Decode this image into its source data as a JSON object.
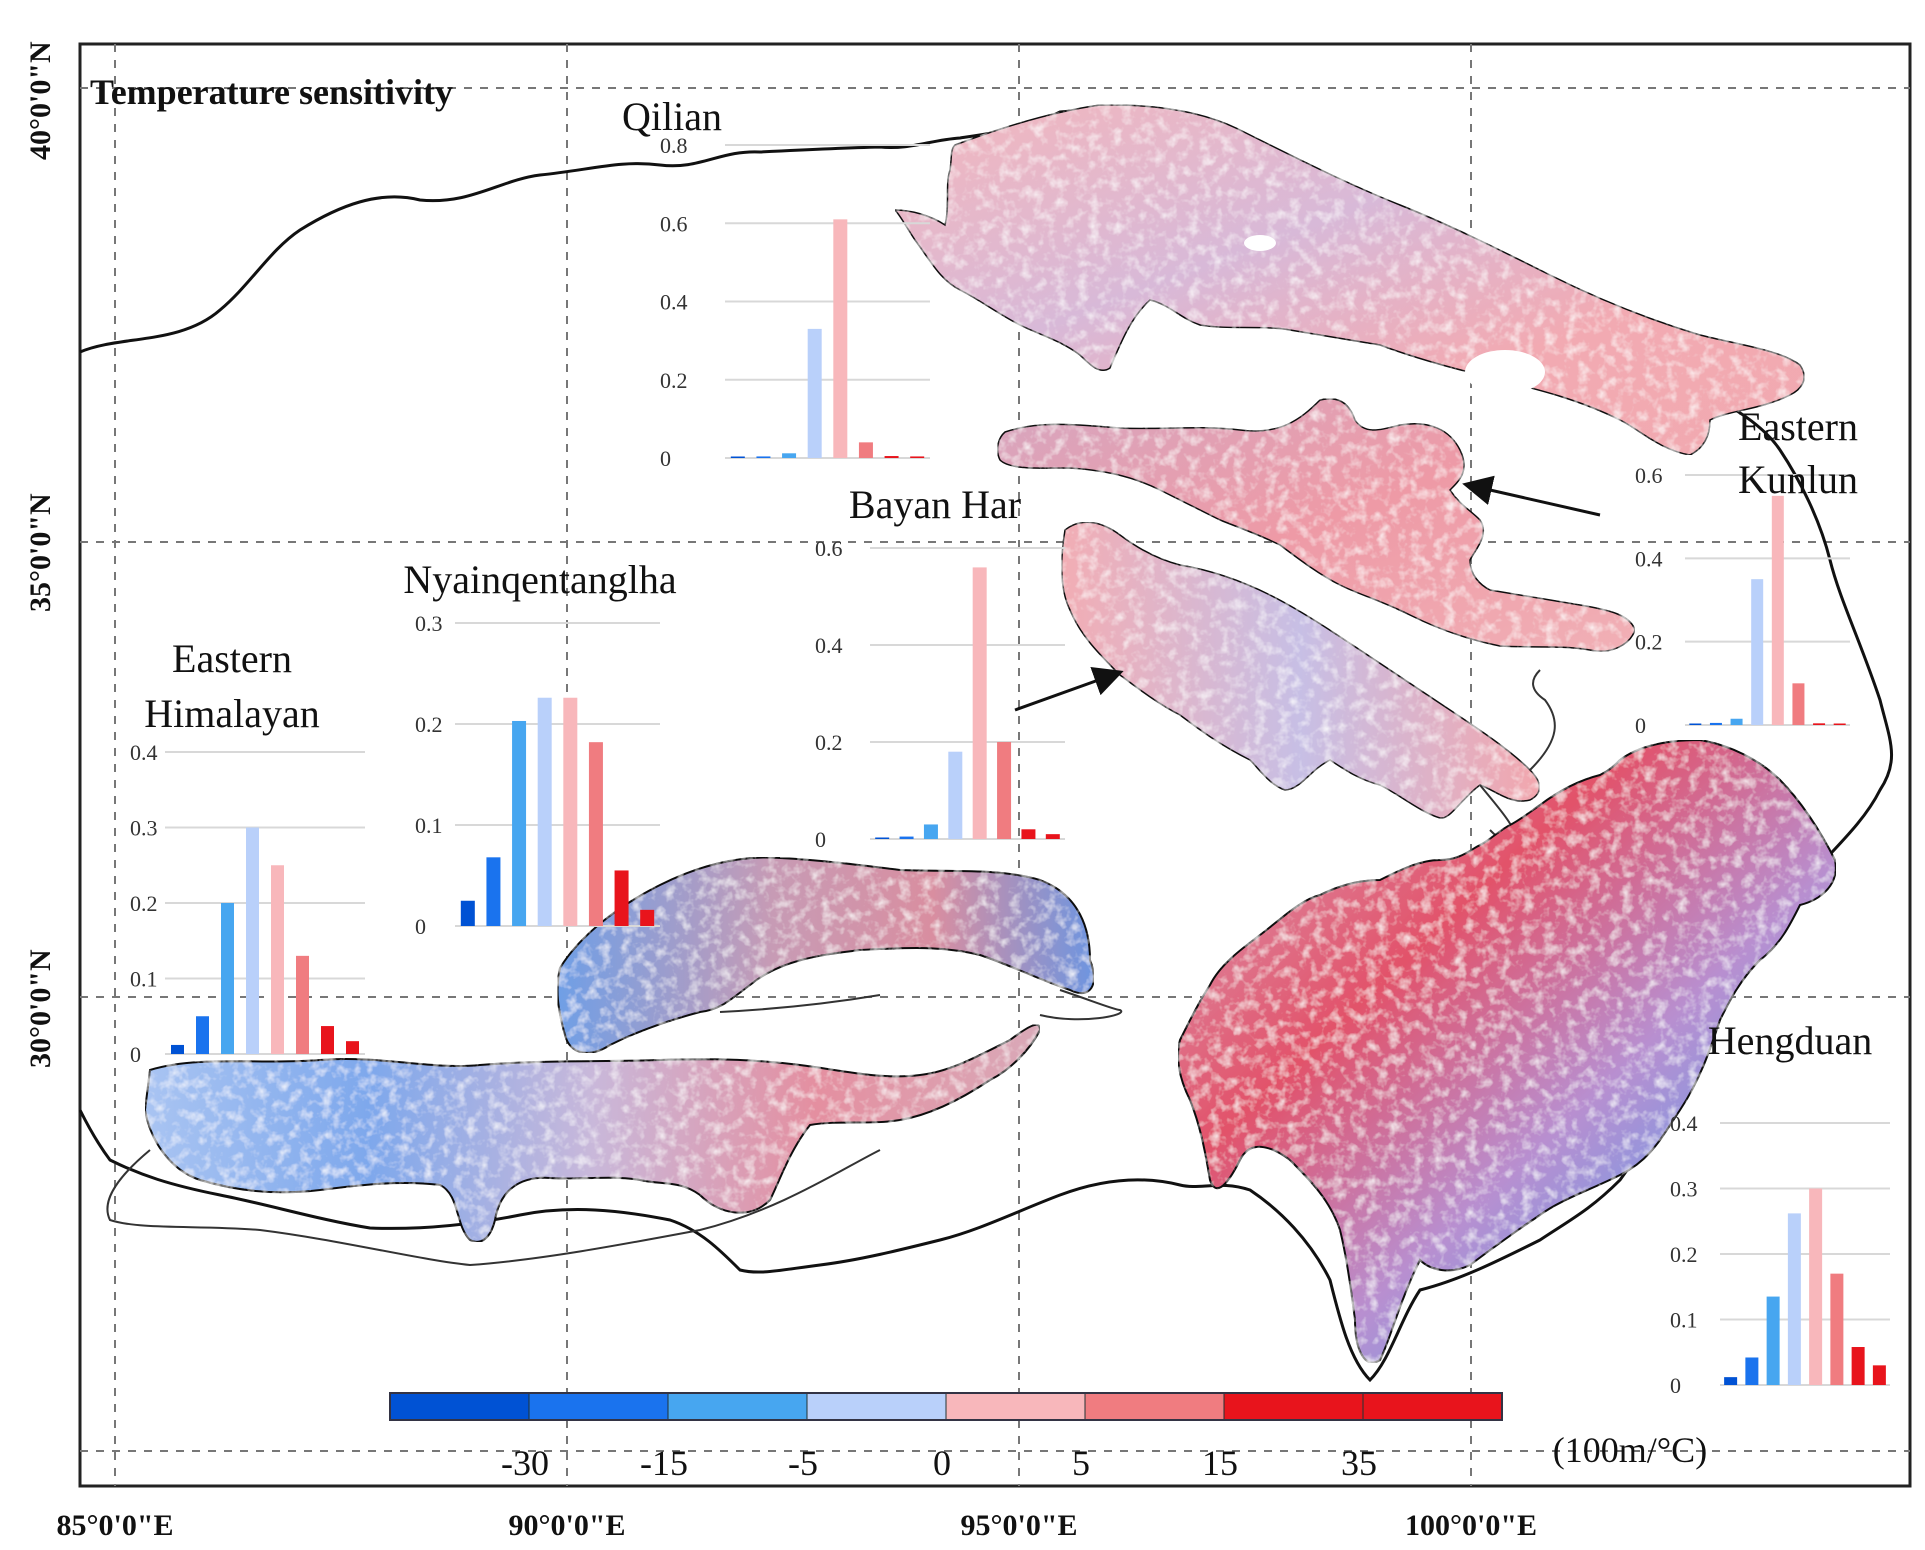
{
  "figure": {
    "title": "Temperature sensitivity",
    "lat_labels": [
      "40°0'0\"N",
      "35°0'0\"N",
      "30°0'0\"N"
    ],
    "lon_labels": [
      "85°0'0\"E",
      "90°0'0\"E",
      "95°0'0\"E",
      "100°0'0\"E"
    ]
  },
  "colorbar": {
    "colors": [
      "#0052d4",
      "#1a73ee",
      "#47a6f0",
      "#b9d0fa",
      "#f8b7bb",
      "#f07c80",
      "#e8141c",
      "#e8141c"
    ],
    "tick_labels": [
      "-30",
      "-15",
      "-5",
      "0",
      "5",
      "15",
      "35"
    ],
    "unit": "(100m/°C)"
  },
  "bar_colors": [
    "#0052d4",
    "#1a73ee",
    "#47a6f0",
    "#b9d0fa",
    "#f8b7bb",
    "#f07c80",
    "#e8141c",
    "#e8141c"
  ],
  "regions": [
    {
      "name": "Qilian",
      "lines": [
        "Qilian"
      ]
    },
    {
      "name": "Bayan Har",
      "lines": [
        "Bayan Har"
      ]
    },
    {
      "name": "Eastern Kunlun",
      "lines": [
        "Eastern",
        "Kunlun"
      ]
    },
    {
      "name": "Nyainqentanglha",
      "lines": [
        "Nyainqentanglha"
      ]
    },
    {
      "name": "Eastern Himalayan",
      "lines": [
        "Eastern",
        "Himalayan"
      ]
    },
    {
      "name": "Hengduan",
      "lines": [
        "Hengduan"
      ]
    }
  ],
  "chart_data": [
    {
      "type": "bar",
      "title": "Qilian",
      "categories": [
        "<-30",
        "-30~-15",
        "-15~-5",
        "-5~0",
        "0~5",
        "5~15",
        "15~35",
        ">35"
      ],
      "values": [
        0.003,
        0.004,
        0.012,
        0.33,
        0.61,
        0.04,
        0.005,
        0.004
      ],
      "ylim": [
        0,
        0.8
      ],
      "yticks": [
        "0",
        "0.2",
        "0.4",
        "0.6",
        "0.8"
      ]
    },
    {
      "type": "bar",
      "title": "Bayan Har",
      "categories": [
        "<-30",
        "-30~-15",
        "-15~-5",
        "-5~0",
        "0~5",
        "5~15",
        "15~35",
        ">35"
      ],
      "values": [
        0.003,
        0.005,
        0.03,
        0.18,
        0.56,
        0.2,
        0.02,
        0.01
      ],
      "ylim": [
        0,
        0.6
      ],
      "yticks": [
        "0",
        "0.2",
        "0.4",
        "0.6"
      ]
    },
    {
      "type": "bar",
      "title": "Eastern Kunlun",
      "categories": [
        "<-30",
        "-30~-15",
        "-15~-5",
        "-5~0",
        "0~5",
        "5~15",
        "15~35",
        ">35"
      ],
      "values": [
        0.003,
        0.005,
        0.015,
        0.35,
        0.55,
        0.1,
        0.004,
        0.003
      ],
      "ylim": [
        0,
        0.6
      ],
      "yticks": [
        "0",
        "0.2",
        "0.4",
        "0.6"
      ]
    },
    {
      "type": "bar",
      "title": "Nyainqentanglha",
      "categories": [
        "<-30",
        "-30~-15",
        "-15~-5",
        "-5~0",
        "0~5",
        "5~15",
        "15~35",
        ">35"
      ],
      "values": [
        0.025,
        0.068,
        0.203,
        0.226,
        0.226,
        0.182,
        0.055,
        0.016
      ],
      "ylim": [
        0,
        0.3
      ],
      "yticks": [
        "0",
        "0.1",
        "0.2",
        "0.3"
      ]
    },
    {
      "type": "bar",
      "title": "Eastern Himalayan",
      "categories": [
        "<-30",
        "-30~-15",
        "-15~-5",
        "-5~0",
        "0~5",
        "5~15",
        "15~35",
        ">35"
      ],
      "values": [
        0.012,
        0.05,
        0.2,
        0.3,
        0.25,
        0.13,
        0.037,
        0.017
      ],
      "ylim": [
        0,
        0.4
      ],
      "yticks": [
        "0",
        "0.1",
        "0.2",
        "0.3",
        "0.4"
      ]
    },
    {
      "type": "bar",
      "title": "Hengduan",
      "categories": [
        "<-30",
        "-30~-15",
        "-15~-5",
        "-5~0",
        "0~5",
        "5~15",
        "15~35",
        ">35"
      ],
      "values": [
        0.012,
        0.042,
        0.135,
        0.262,
        0.3,
        0.17,
        0.058,
        0.03
      ],
      "ylim": [
        0,
        0.4
      ],
      "yticks": [
        "0",
        "0.1",
        "0.2",
        "0.3",
        "0.4"
      ]
    }
  ]
}
